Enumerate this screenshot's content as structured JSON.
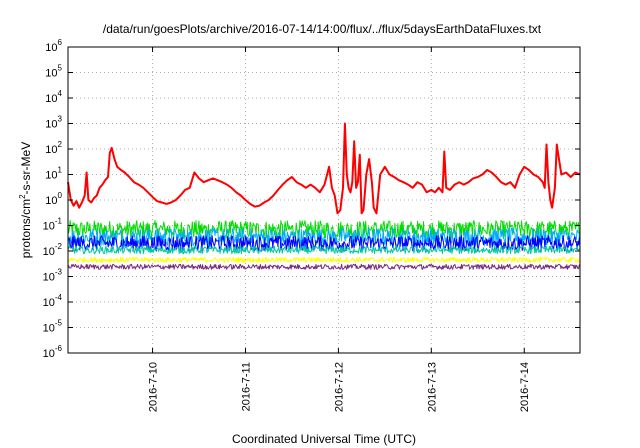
{
  "chart_data": {
    "type": "line",
    "title": "/data/run/goesPlots/archive/2016-07-14/14:00/flux/../flux/5daysEarthDataFluxes.txt",
    "xlabel": "Coordinated Universal Time (UTC)",
    "ylabel": {
      "pre": "protons/cm",
      "sup": "2",
      "post": "-s-sr-MeV"
    },
    "yscale": "log",
    "ylim_exp": [
      -6,
      6
    ],
    "y_ticks": [
      {
        "base": "10",
        "exp": "6"
      },
      {
        "base": "10",
        "exp": "5"
      },
      {
        "base": "10",
        "exp": "4"
      },
      {
        "base": "10",
        "exp": "3"
      },
      {
        "base": "10",
        "exp": "2"
      },
      {
        "base": "10",
        "exp": "1"
      },
      {
        "base": "10",
        "exp": "0"
      },
      {
        "base": "10",
        "exp": "-1"
      },
      {
        "base": "10",
        "exp": "-2"
      },
      {
        "base": "10",
        "exp": "-3"
      },
      {
        "base": "10",
        "exp": "-4"
      },
      {
        "base": "10",
        "exp": "-5"
      },
      {
        "base": "10",
        "exp": "-6"
      }
    ],
    "x_days_range": [
      9.09,
      14.6
    ],
    "x_ticks": [
      {
        "day": 10,
        "label": "2016-7-10"
      },
      {
        "day": 11,
        "label": "2016-7-11"
      },
      {
        "day": 12,
        "label": "2016-7-12"
      },
      {
        "day": 13,
        "label": "2016-7-13"
      },
      {
        "day": 14,
        "label": "2016-7-14"
      }
    ],
    "grid": true,
    "series": [
      {
        "color": "#ff0000",
        "stroke": 2,
        "points": [
          [
            9.09,
            5
          ],
          [
            9.12,
            1.0
          ],
          [
            9.15,
            0.6
          ],
          [
            9.18,
            0.9
          ],
          [
            9.21,
            0.5
          ],
          [
            9.24,
            0.8
          ],
          [
            9.27,
            1.5
          ],
          [
            9.29,
            12
          ],
          [
            9.31,
            1.0
          ],
          [
            9.34,
            0.8
          ],
          [
            9.37,
            1.2
          ],
          [
            9.4,
            1.5
          ],
          [
            9.43,
            3
          ],
          [
            9.46,
            4
          ],
          [
            9.49,
            6
          ],
          [
            9.52,
            8
          ],
          [
            9.54,
            70
          ],
          [
            9.56,
            110
          ],
          [
            9.59,
            40
          ],
          [
            9.62,
            20
          ],
          [
            9.66,
            15
          ],
          [
            9.7,
            12
          ],
          [
            9.75,
            8
          ],
          [
            9.8,
            5
          ],
          [
            9.85,
            4
          ],
          [
            9.9,
            3
          ],
          [
            9.95,
            2
          ],
          [
            10.0,
            1.3
          ],
          [
            10.05,
            0.9
          ],
          [
            10.1,
            0.8
          ],
          [
            10.15,
            0.7
          ],
          [
            10.2,
            0.8
          ],
          [
            10.25,
            1.0
          ],
          [
            10.3,
            1.5
          ],
          [
            10.35,
            2.5
          ],
          [
            10.4,
            3
          ],
          [
            10.45,
            12
          ],
          [
            10.5,
            7
          ],
          [
            10.55,
            5
          ],
          [
            10.6,
            6
          ],
          [
            10.65,
            7
          ],
          [
            10.7,
            6
          ],
          [
            10.75,
            5
          ],
          [
            10.8,
            4
          ],
          [
            10.85,
            3
          ],
          [
            10.9,
            2
          ],
          [
            10.95,
            1.5
          ],
          [
            11.0,
            1.0
          ],
          [
            11.05,
            0.7
          ],
          [
            11.1,
            0.55
          ],
          [
            11.15,
            0.6
          ],
          [
            11.2,
            0.8
          ],
          [
            11.25,
            1.0
          ],
          [
            11.3,
            1.5
          ],
          [
            11.35,
            2.5
          ],
          [
            11.4,
            4
          ],
          [
            11.45,
            6
          ],
          [
            11.5,
            8
          ],
          [
            11.55,
            5
          ],
          [
            11.6,
            4
          ],
          [
            11.65,
            3
          ],
          [
            11.7,
            4
          ],
          [
            11.75,
            3
          ],
          [
            11.8,
            2
          ],
          [
            11.85,
            4
          ],
          [
            11.9,
            20
          ],
          [
            11.93,
            3
          ],
          [
            11.96,
            1.5
          ],
          [
            11.99,
            0.3
          ],
          [
            12.02,
            0.4
          ],
          [
            12.05,
            3
          ],
          [
            12.07,
            1000
          ],
          [
            12.09,
            10
          ],
          [
            12.11,
            3
          ],
          [
            12.13,
            2
          ],
          [
            12.15,
            5
          ],
          [
            12.17,
            200
          ],
          [
            12.19,
            3
          ],
          [
            12.21,
            5
          ],
          [
            12.23,
            60
          ],
          [
            12.25,
            0.3
          ],
          [
            12.27,
            0.4
          ],
          [
            12.3,
            10
          ],
          [
            12.33,
            40
          ],
          [
            12.36,
            5
          ],
          [
            12.38,
            0.5
          ],
          [
            12.41,
            0.3
          ],
          [
            12.45,
            10
          ],
          [
            12.5,
            20
          ],
          [
            12.55,
            10
          ],
          [
            12.6,
            8
          ],
          [
            12.65,
            6
          ],
          [
            12.7,
            5
          ],
          [
            12.75,
            4
          ],
          [
            12.8,
            3
          ],
          [
            12.85,
            5
          ],
          [
            12.9,
            4
          ],
          [
            12.95,
            2
          ],
          [
            13.0,
            2.5
          ],
          [
            13.04,
            2
          ],
          [
            13.08,
            3
          ],
          [
            13.12,
            2
          ],
          [
            13.14,
            80
          ],
          [
            13.16,
            3
          ],
          [
            13.2,
            2.5
          ],
          [
            13.25,
            4
          ],
          [
            13.3,
            5
          ],
          [
            13.35,
            4
          ],
          [
            13.4,
            5
          ],
          [
            13.45,
            7
          ],
          [
            13.5,
            8
          ],
          [
            13.55,
            10
          ],
          [
            13.6,
            15
          ],
          [
            13.65,
            12
          ],
          [
            13.7,
            8
          ],
          [
            13.75,
            5
          ],
          [
            13.8,
            4
          ],
          [
            13.85,
            5
          ],
          [
            13.9,
            3
          ],
          [
            13.95,
            10
          ],
          [
            14.0,
            20
          ],
          [
            14.05,
            15
          ],
          [
            14.1,
            10
          ],
          [
            14.15,
            8
          ],
          [
            14.2,
            5
          ],
          [
            14.22,
            3
          ],
          [
            14.24,
            150
          ],
          [
            14.26,
            5
          ],
          [
            14.28,
            1.0
          ],
          [
            14.3,
            0.5
          ],
          [
            14.33,
            3
          ],
          [
            14.35,
            150
          ],
          [
            14.37,
            50
          ],
          [
            14.4,
            10
          ],
          [
            14.45,
            12
          ],
          [
            14.5,
            8
          ],
          [
            14.55,
            12
          ],
          [
            14.6,
            10
          ]
        ]
      },
      {
        "color": "#00dd00",
        "stroke": 1,
        "band": true,
        "base": 0.07,
        "jitter": 0.35
      },
      {
        "color": "#00aaff",
        "stroke": 1,
        "band": true,
        "base": 0.035,
        "jitter": 0.35
      },
      {
        "color": "#0000ff",
        "stroke": 1,
        "band": true,
        "base": 0.02,
        "jitter": 0.3
      },
      {
        "color": "#00c8a0",
        "stroke": 1,
        "band": true,
        "base": 0.011,
        "jitter": 0.15
      },
      {
        "color": "#ffff00",
        "stroke": 1,
        "band": true,
        "base": 0.0045,
        "jitter": 0.1
      },
      {
        "color": "#7a2a7a",
        "stroke": 1,
        "band": true,
        "base": 0.0024,
        "jitter": 0.1
      }
    ]
  }
}
